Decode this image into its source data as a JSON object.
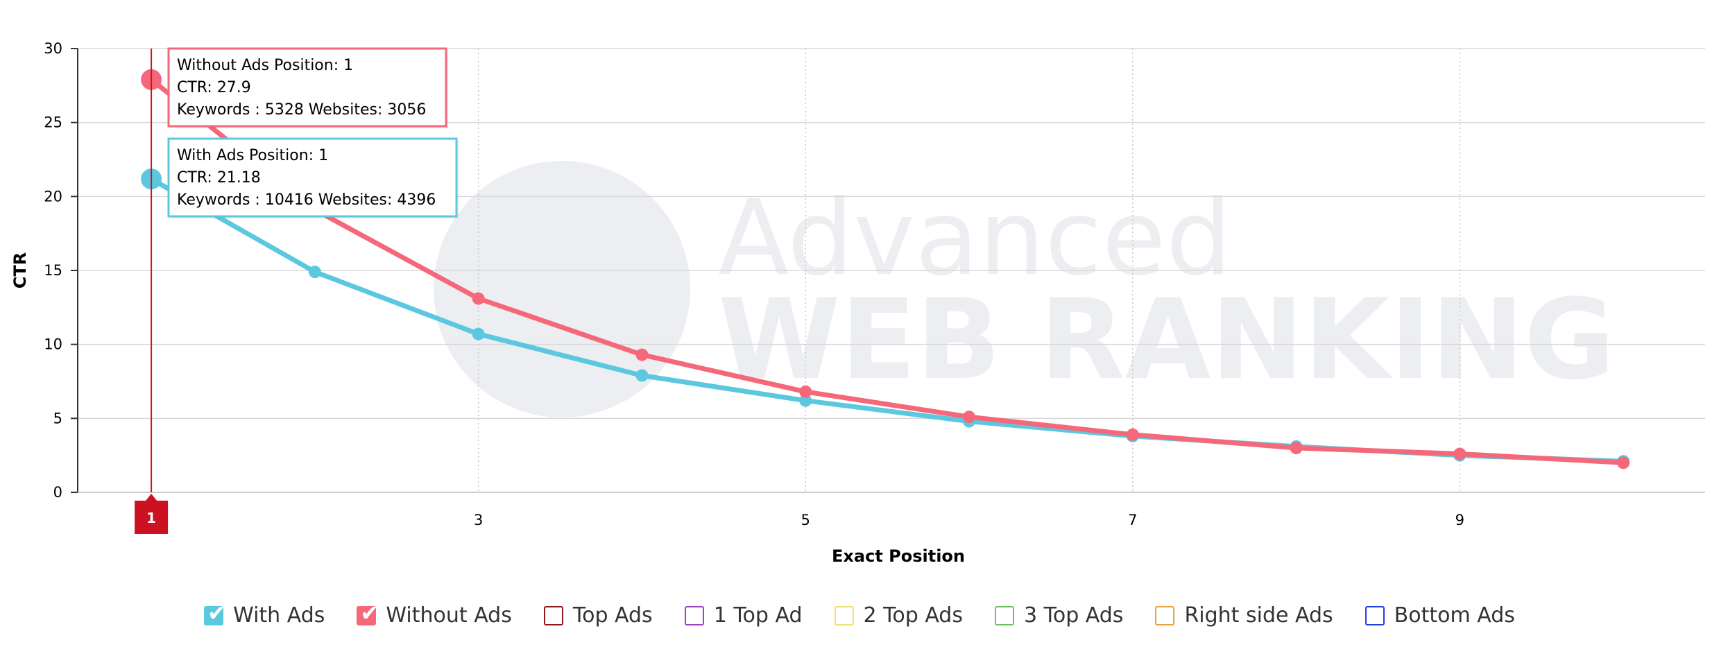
{
  "chart_data": {
    "type": "line",
    "xlabel": "Exact Position",
    "ylabel": "CTR",
    "xlim": [
      0.55,
      10.5
    ],
    "ylim": [
      0,
      30
    ],
    "x_ticks": [
      "3",
      "5",
      "7",
      "9"
    ],
    "y_ticks": [
      "0",
      "5",
      "10",
      "15",
      "20",
      "25",
      "30"
    ],
    "grid": true,
    "legend_position": "bottom",
    "series": [
      {
        "name": "With Ads",
        "color": "#5bc8e0",
        "x": [
          1,
          2,
          3,
          4,
          5,
          6,
          7,
          8,
          9,
          10
        ],
        "values": [
          21.18,
          14.9,
          10.7,
          7.9,
          6.2,
          4.8,
          3.8,
          3.1,
          2.5,
          2.1
        ]
      },
      {
        "name": "Without Ads",
        "color": "#f5687a",
        "x": [
          1,
          2,
          3,
          4,
          5,
          6,
          7,
          8,
          9,
          10
        ],
        "values": [
          27.9,
          19.1,
          13.1,
          9.3,
          6.8,
          5.1,
          3.9,
          3.0,
          2.6,
          2.0
        ]
      }
    ],
    "crosshair": {
      "x_label": "1",
      "color": "#cc1122"
    },
    "tooltips": [
      {
        "series": "Without Ads",
        "color": "#f5687a",
        "lines": [
          "Without Ads Position: 1",
          "CTR: 27.9",
          "Keywords : 5328 Websites: 3056"
        ]
      },
      {
        "series": "With Ads",
        "color": "#5bc8e0",
        "lines": [
          "With Ads Position: 1",
          "CTR: 21.18",
          "Keywords : 10416 Websites: 4396"
        ]
      }
    ],
    "watermark": {
      "line1": "Advanced",
      "line2": "WEB RANKING"
    }
  },
  "legend": {
    "items": [
      {
        "label": "With Ads",
        "color": "#5bc8e0",
        "checked": true
      },
      {
        "label": "Without Ads",
        "color": "#f5687a",
        "checked": true
      },
      {
        "label": "Top Ads",
        "color": "#8b1a1a",
        "checked": false
      },
      {
        "label": "1 Top Ad",
        "color": "#a040c0",
        "checked": false
      },
      {
        "label": "2 Top Ads",
        "color": "#f0e070",
        "checked": false
      },
      {
        "label": "3 Top Ads",
        "color": "#70c060",
        "checked": false
      },
      {
        "label": "Right side Ads",
        "color": "#f0a040",
        "checked": false
      },
      {
        "label": "Bottom Ads",
        "color": "#2040e0",
        "checked": false
      }
    ]
  }
}
